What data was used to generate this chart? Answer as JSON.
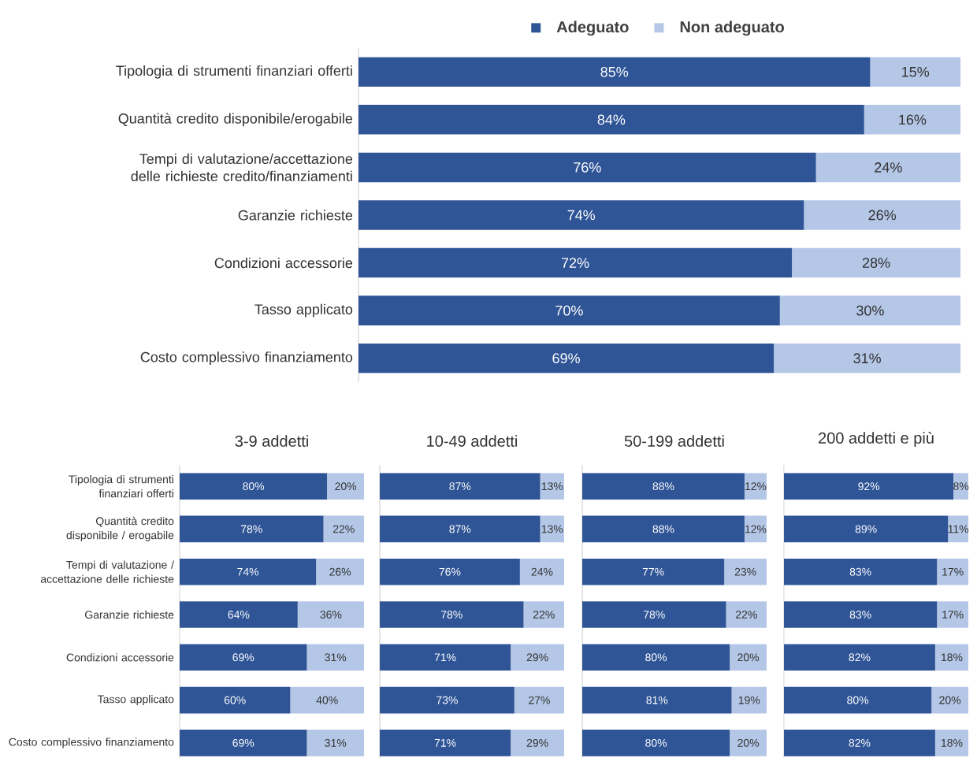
{
  "chart_data": [
    {
      "type": "bar",
      "orientation": "horizontal",
      "stacked": true,
      "tick_labels": "y",
      "legend": "top",
      "categories": [
        "Tipologia di strumenti finanziari offerti",
        "Quantità credito disponibile/erogabile",
        "Tempi di valutazione/accettazione delle richieste credito/finanziamenti",
        "Garanzie richieste",
        "Condizioni accessorie",
        "Tasso applicato",
        "Costo complessivo finanziamento"
      ],
      "series": [
        {
          "name": "Adeguato",
          "color": "#2f5597",
          "values": [
            85,
            84,
            76,
            74,
            72,
            70,
            69
          ],
          "value_labels": [
            "85%",
            "84%",
            "76%",
            "74%",
            "72%",
            "70%",
            "69%"
          ]
        },
        {
          "name": "Non adeguato",
          "color": "#b4c7e7",
          "values": [
            15,
            16,
            24,
            26,
            28,
            30,
            31
          ],
          "value_labels": [
            "15%",
            "16%",
            "24%",
            "26%",
            "28%",
            "30%",
            "31%"
          ]
        }
      ]
    },
    {
      "type": "bar",
      "orientation": "horizontal",
      "stacked": true,
      "tick_labels": "y",
      "title": "3-9 addetti",
      "categories": [
        "Tipologia di strumenti finanziari offerti",
        "Quantità credito disponibile / erogabile",
        "Tempi di valutazione / accettazione delle richieste",
        "Garanzie richieste",
        "Condizioni accessorie",
        "Tasso applicato",
        "Costo complessivo finanziamento"
      ],
      "series": [
        {
          "color": "#2f5597",
          "values": [
            80,
            78,
            74,
            64,
            69,
            60,
            69
          ],
          "value_labels": [
            "80%",
            "78%",
            "74%",
            "64%",
            "69%",
            "60%",
            "69%"
          ]
        },
        {
          "color": "#b4c7e7",
          "values": [
            20,
            22,
            26,
            36,
            31,
            40,
            31
          ],
          "value_labels": [
            "20%",
            "22%",
            "26%",
            "36%",
            "31%",
            "40%",
            "31%"
          ]
        }
      ]
    },
    {
      "type": "bar",
      "orientation": "horizontal",
      "stacked": true,
      "tick_labels": false,
      "title": "10-49 addetti",
      "categories": [
        null,
        null,
        null,
        null,
        null,
        null,
        null
      ],
      "series": [
        {
          "color": "#2f5597",
          "values": [
            87,
            87,
            76,
            78,
            71,
            73,
            71
          ],
          "value_labels": [
            "87%",
            "87%",
            "76%",
            "78%",
            "71%",
            "73%",
            "71%"
          ]
        },
        {
          "color": "#b4c7e7",
          "values": [
            13,
            13,
            24,
            22,
            29,
            27,
            29
          ],
          "value_labels": [
            "13%",
            "13%",
            "24%",
            "22%",
            "29%",
            "27%",
            "29%"
          ]
        }
      ]
    },
    {
      "type": "bar",
      "orientation": "horizontal",
      "stacked": true,
      "tick_labels": false,
      "title": "50-199 addetti",
      "categories": [
        null,
        null,
        null,
        null,
        null,
        null,
        null
      ],
      "series": [
        {
          "color": "#2f5597",
          "values": [
            88,
            88,
            77,
            78,
            80,
            81,
            80
          ],
          "value_labels": [
            "88%",
            "88%",
            "77%",
            "78%",
            "80%",
            "81%",
            "80%"
          ]
        },
        {
          "color": "#b4c7e7",
          "values": [
            12,
            12,
            23,
            22,
            20,
            19,
            20
          ],
          "value_labels": [
            "12%",
            "12%",
            "23%",
            "22%",
            "20%",
            "19%",
            "20%"
          ]
        }
      ]
    },
    {
      "type": "bar",
      "orientation": "horizontal",
      "stacked": true,
      "tick_labels": false,
      "title": "200 addetti e più",
      "categories": [
        null,
        null,
        null,
        null,
        null,
        null,
        null
      ],
      "series": [
        {
          "color": "#2f5597",
          "values": [
            92,
            89,
            83,
            83,
            82,
            80,
            82
          ],
          "value_labels": [
            "92%",
            "89%",
            "83%",
            "83%",
            "82%",
            "80%",
            "82%"
          ]
        },
        {
          "color": "#b4c7e7",
          "values": [
            8,
            11,
            17,
            17,
            18,
            20,
            18
          ],
          "value_labels": [
            "8%",
            "11%",
            "17%",
            "17%",
            "18%",
            "20%",
            "18%"
          ]
        }
      ]
    }
  ]
}
